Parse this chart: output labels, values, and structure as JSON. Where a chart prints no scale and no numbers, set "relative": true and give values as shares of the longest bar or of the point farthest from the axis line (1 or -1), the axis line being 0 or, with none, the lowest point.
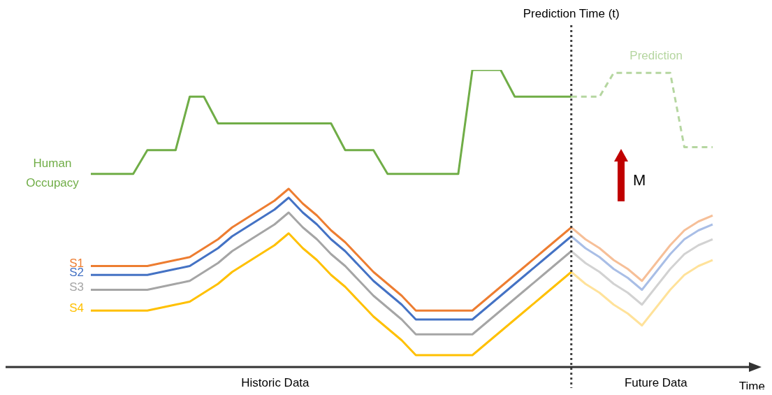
{
  "chart_data": {
    "type": "line",
    "relative": true,
    "xlabel": "Time",
    "legend": false,
    "marker": "none",
    "categories": [
      null,
      null,
      null,
      null,
      null,
      null,
      null,
      null,
      null,
      null,
      null,
      null,
      null,
      null,
      null,
      null,
      null,
      null,
      null,
      null,
      null,
      null,
      null,
      null,
      null,
      null,
      null,
      null,
      null,
      null,
      null,
      null,
      null,
      null,
      null,
      null,
      null,
      null,
      null,
      null,
      null,
      null,
      null,
      null,
      null
    ],
    "series": [
      {
        "name": "Human Occupacy",
        "color": "#70ad47",
        "type": "step",
        "values": [
          0.65,
          0.65,
          0.65,
          0.65,
          0.73,
          0.73,
          0.73,
          0.91,
          0.91,
          0.82,
          0.82,
          0.82,
          0.82,
          0.82,
          0.82,
          0.82,
          0.82,
          0.82,
          0.73,
          0.73,
          0.73,
          0.65,
          0.65,
          0.65,
          0.65,
          0.65,
          0.65,
          1.0,
          1.0,
          1.0,
          0.91,
          0.91,
          0.91,
          0.91,
          0.91,
          null,
          null,
          null,
          null,
          null,
          null,
          null,
          null,
          null,
          null
        ]
      },
      {
        "name": "Prediction",
        "color": "#b5d6a0",
        "type": "step",
        "line_style": "dashed",
        "values": [
          null,
          null,
          null,
          null,
          null,
          null,
          null,
          null,
          null,
          null,
          null,
          null,
          null,
          null,
          null,
          null,
          null,
          null,
          null,
          null,
          null,
          null,
          null,
          null,
          null,
          null,
          null,
          null,
          null,
          null,
          null,
          null,
          null,
          null,
          0.91,
          0.91,
          0.91,
          0.99,
          0.99,
          0.99,
          0.99,
          0.99,
          0.74,
          0.74,
          0.74
        ]
      },
      {
        "name": "S1",
        "color": "#ed7d31",
        "values": [
          0.34,
          0.34,
          0.34,
          0.34,
          0.34,
          0.35,
          0.36,
          0.37,
          0.4,
          0.43,
          0.47,
          0.5,
          0.53,
          0.56,
          0.6,
          0.55,
          0.51,
          0.46,
          0.42,
          0.37,
          0.32,
          0.28,
          0.24,
          0.19,
          0.19,
          0.19,
          0.19,
          0.19,
          0.23,
          0.27,
          0.31,
          0.35,
          0.39,
          0.43,
          0.47,
          null,
          null,
          null,
          null,
          null,
          null,
          null,
          null,
          null,
          null
        ]
      },
      {
        "name": "S2",
        "color": "#4472c4",
        "values": [
          0.31,
          0.31,
          0.31,
          0.31,
          0.31,
          0.32,
          0.33,
          0.34,
          0.37,
          0.4,
          0.44,
          0.47,
          0.5,
          0.53,
          0.57,
          0.52,
          0.48,
          0.43,
          0.39,
          0.34,
          0.29,
          0.25,
          0.21,
          0.16,
          0.16,
          0.16,
          0.16,
          0.16,
          0.2,
          0.24,
          0.28,
          0.32,
          0.36,
          0.4,
          0.44,
          null,
          null,
          null,
          null,
          null,
          null,
          null,
          null,
          null,
          null
        ]
      },
      {
        "name": "S3",
        "color": "#a5a5a5",
        "values": [
          0.26,
          0.26,
          0.26,
          0.26,
          0.26,
          0.27,
          0.28,
          0.29,
          0.32,
          0.35,
          0.39,
          0.42,
          0.45,
          0.48,
          0.52,
          0.47,
          0.43,
          0.38,
          0.34,
          0.29,
          0.24,
          0.2,
          0.16,
          0.11,
          0.11,
          0.11,
          0.11,
          0.11,
          0.15,
          0.19,
          0.23,
          0.27,
          0.31,
          0.35,
          0.39,
          null,
          null,
          null,
          null,
          null,
          null,
          null,
          null,
          null,
          null
        ]
      },
      {
        "name": "S4",
        "color": "#ffc000",
        "values": [
          0.19,
          0.19,
          0.19,
          0.19,
          0.19,
          0.2,
          0.21,
          0.22,
          0.25,
          0.28,
          0.32,
          0.35,
          0.38,
          0.41,
          0.45,
          0.4,
          0.36,
          0.31,
          0.27,
          0.22,
          0.17,
          0.13,
          0.09,
          0.04,
          0.04,
          0.04,
          0.04,
          0.04,
          0.08,
          0.12,
          0.16,
          0.2,
          0.24,
          0.28,
          0.32,
          null,
          null,
          null,
          null,
          null,
          null,
          null,
          null,
          null,
          null
        ]
      },
      {
        "color": "#f6bf98",
        "values": [
          null,
          null,
          null,
          null,
          null,
          null,
          null,
          null,
          null,
          null,
          null,
          null,
          null,
          null,
          null,
          null,
          null,
          null,
          null,
          null,
          null,
          null,
          null,
          null,
          null,
          null,
          null,
          null,
          null,
          null,
          null,
          null,
          null,
          null,
          0.47,
          0.43,
          0.4,
          0.36,
          0.33,
          0.29,
          0.35,
          0.41,
          0.46,
          0.49,
          0.51
        ]
      },
      {
        "color": "#a9bee6",
        "values": [
          null,
          null,
          null,
          null,
          null,
          null,
          null,
          null,
          null,
          null,
          null,
          null,
          null,
          null,
          null,
          null,
          null,
          null,
          null,
          null,
          null,
          null,
          null,
          null,
          null,
          null,
          null,
          null,
          null,
          null,
          null,
          null,
          null,
          null,
          0.44,
          0.4,
          0.37,
          0.33,
          0.3,
          0.26,
          0.32,
          0.38,
          0.43,
          0.46,
          0.48
        ]
      },
      {
        "color": "#d2d2d2",
        "values": [
          null,
          null,
          null,
          null,
          null,
          null,
          null,
          null,
          null,
          null,
          null,
          null,
          null,
          null,
          null,
          null,
          null,
          null,
          null,
          null,
          null,
          null,
          null,
          null,
          null,
          null,
          null,
          null,
          null,
          null,
          null,
          null,
          null,
          null,
          0.39,
          0.35,
          0.32,
          0.28,
          0.25,
          0.21,
          0.27,
          0.33,
          0.38,
          0.41,
          0.43
        ]
      },
      {
        "color": "#ffe29a",
        "values": [
          null,
          null,
          null,
          null,
          null,
          null,
          null,
          null,
          null,
          null,
          null,
          null,
          null,
          null,
          null,
          null,
          null,
          null,
          null,
          null,
          null,
          null,
          null,
          null,
          null,
          null,
          null,
          null,
          null,
          null,
          null,
          null,
          null,
          null,
          0.32,
          0.28,
          0.25,
          0.21,
          0.18,
          0.14,
          0.2,
          0.26,
          0.31,
          0.34,
          0.36
        ]
      }
    ],
    "annotations": [
      "Historic Data",
      "Future Data",
      "M",
      "Prediction Time (t)"
    ]
  }
}
